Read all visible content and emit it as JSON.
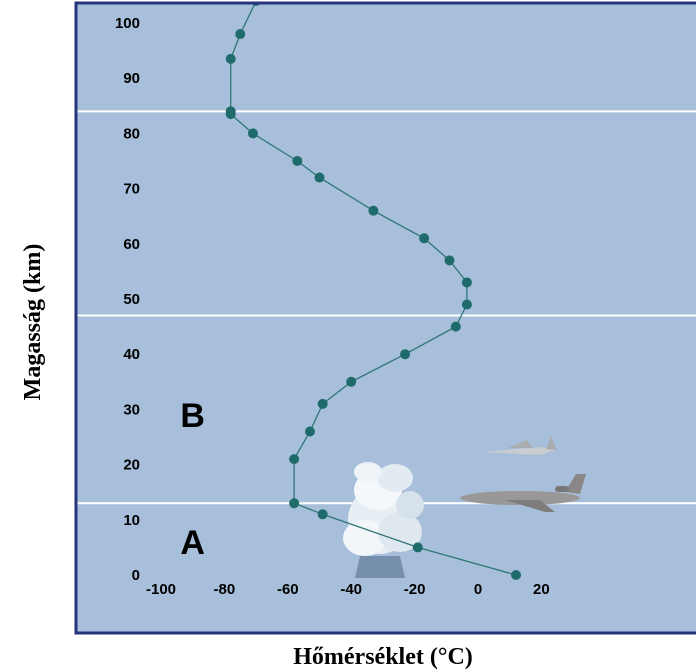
{
  "chart_data": {
    "type": "line",
    "xlabel": "Hőmérséklet (°C)",
    "ylabel": "Magasság (km)",
    "xlim": [
      -100,
      20
    ],
    "ylim": [
      0,
      100
    ],
    "x_ticks": [
      -100,
      -80,
      -60,
      -40,
      -20,
      0,
      20
    ],
    "y_ticks": [
      0,
      10,
      20,
      30,
      40,
      50,
      60,
      70,
      80,
      90,
      100
    ],
    "boundaries_km": [
      13,
      47,
      84
    ],
    "region_labels": [
      {
        "text": "A",
        "x": -90,
        "y": 6
      },
      {
        "text": "B",
        "x": -90,
        "y": 29
      }
    ],
    "colors": {
      "plot_background": "#a7bfda",
      "frame": "#27337a",
      "line": "#2f7775",
      "marker": "#1f6b6b",
      "boundary": "#ffffff"
    },
    "series": [
      {
        "x": [
          12,
          -19,
          -49,
          -58,
          -58,
          -53,
          -49,
          -40,
          -23,
          -7,
          -3.5,
          -3.5,
          -9,
          -17,
          -33,
          -50,
          -57,
          -71,
          -78,
          -78,
          -78,
          -75,
          -70
        ],
        "y": [
          0,
          5,
          11,
          13,
          21,
          26,
          31,
          35,
          40,
          45,
          49,
          53,
          57,
          61,
          66,
          72,
          75,
          80,
          83.5,
          84,
          93.5,
          98,
          104
        ]
      }
    ]
  }
}
